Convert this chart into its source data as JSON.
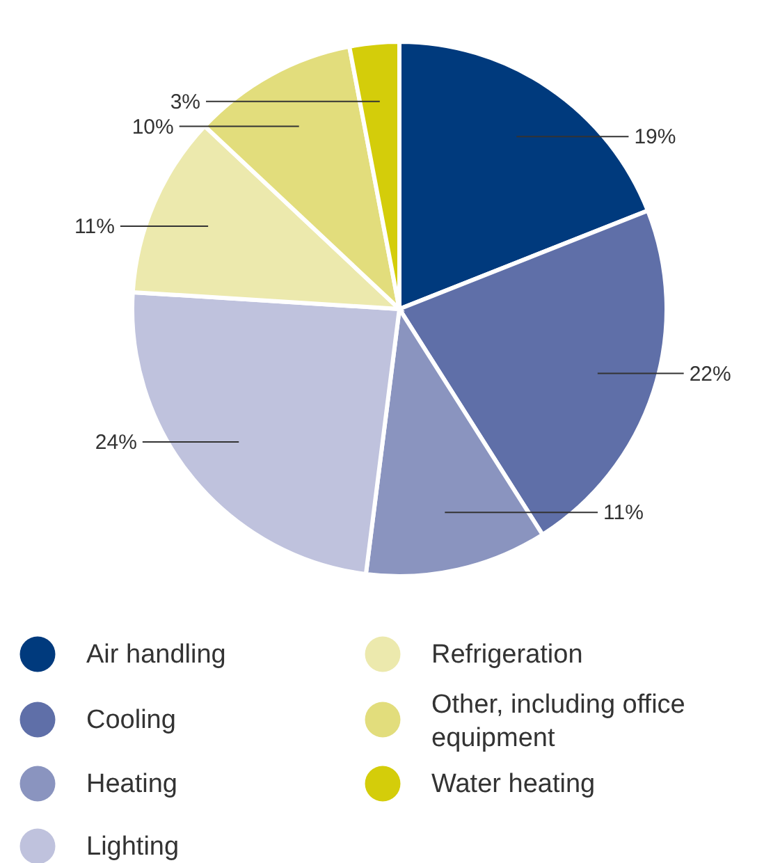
{
  "chart_data": {
    "type": "pie",
    "categories": [
      "Air handling",
      "Cooling",
      "Heating",
      "Lighting",
      "Refrigeration",
      "Other, including office equipment",
      "Water heating"
    ],
    "values": [
      19,
      22,
      11,
      24,
      11,
      10,
      3
    ],
    "value_labels": [
      "19%",
      "22%",
      "11%",
      "24%",
      "11%",
      "10%",
      "3%"
    ],
    "colors": [
      "#003a7d",
      "#5f6fa8",
      "#8a94bf",
      "#bfc2dd",
      "#ece9ad",
      "#e2dd7c",
      "#d4cd0a"
    ],
    "legend": "bottom"
  }
}
